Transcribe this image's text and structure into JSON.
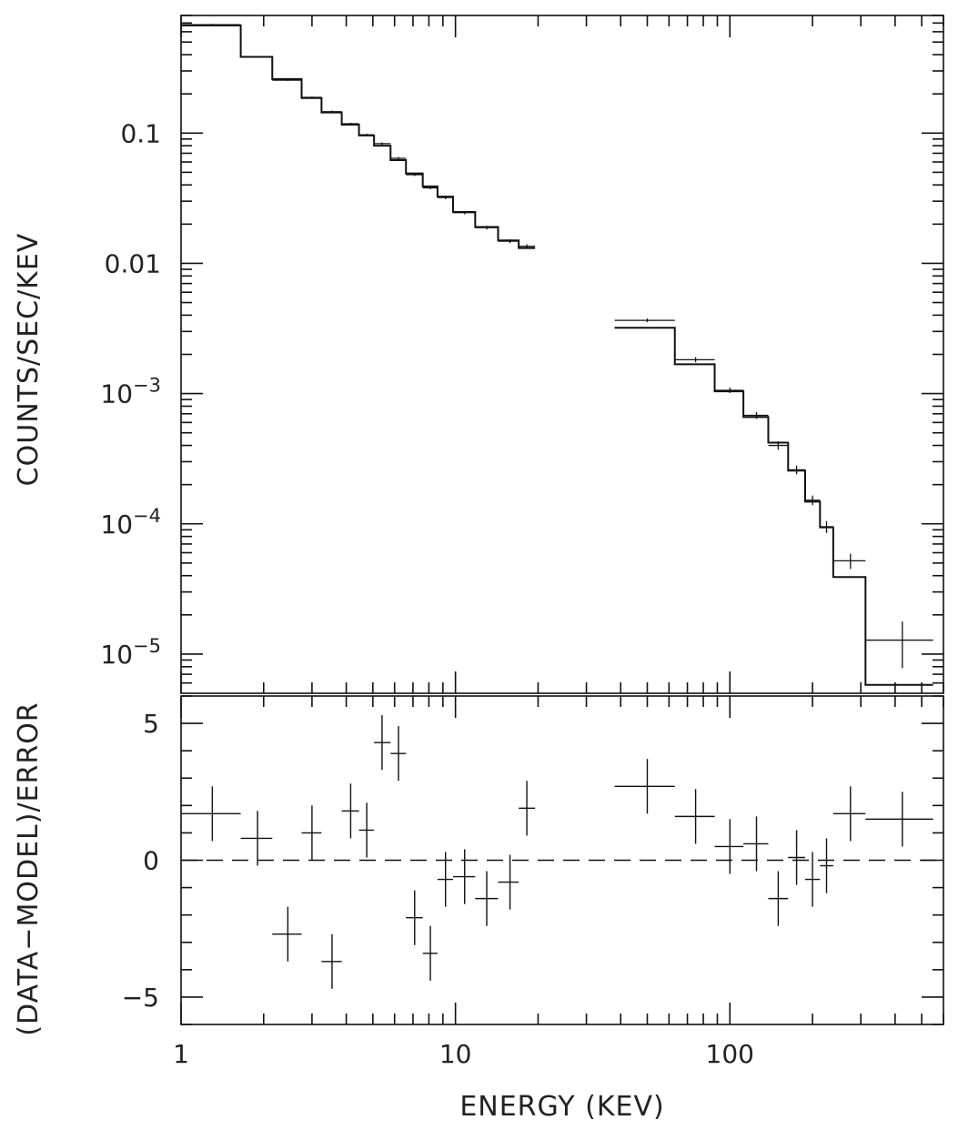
{
  "chart_data": [
    {
      "panel": "spectrum",
      "type": "step",
      "xscale": "log",
      "yscale": "log",
      "xlim": [
        1,
        600
      ],
      "ylim": [
        5e-06,
        0.8
      ],
      "xlabel": "",
      "ylabel": "COUNTS/SEC/KEV",
      "yticks": [
        {
          "value": 0.1,
          "label": "0.1",
          "exp": ""
        },
        {
          "value": 0.01,
          "label": "0.01",
          "exp": ""
        },
        {
          "value": 0.001,
          "label": "10",
          "exp": "−3"
        },
        {
          "value": 0.0001,
          "label": "10",
          "exp": "−4"
        },
        {
          "value": 1e-05,
          "label": "10",
          "exp": "−5"
        }
      ],
      "data_points": [
        {
          "x": 1.3,
          "xlo": 1.0,
          "xhi": 1.65,
          "y": 0.68,
          "yerr": 0.01
        },
        {
          "x": 1.9,
          "xlo": 1.65,
          "xhi": 2.15,
          "y": 0.385,
          "yerr": 0.006
        },
        {
          "x": 2.45,
          "xlo": 2.15,
          "xhi": 2.75,
          "y": 0.255,
          "yerr": 0.004
        },
        {
          "x": 3.0,
          "xlo": 2.75,
          "xhi": 3.25,
          "y": 0.188,
          "yerr": 0.003
        },
        {
          "x": 3.55,
          "xlo": 3.25,
          "xhi": 3.85,
          "y": 0.146,
          "yerr": 0.003
        },
        {
          "x": 4.15,
          "xlo": 3.85,
          "xhi": 4.45,
          "y": 0.118,
          "yerr": 0.002
        },
        {
          "x": 4.75,
          "xlo": 4.45,
          "xhi": 5.05,
          "y": 0.097,
          "yerr": 0.002
        },
        {
          "x": 5.4,
          "xlo": 5.05,
          "xhi": 5.8,
          "y": 0.083,
          "yerr": 0.0018
        },
        {
          "x": 6.2,
          "xlo": 5.8,
          "xhi": 6.6,
          "y": 0.064,
          "yerr": 0.0015
        },
        {
          "x": 7.1,
          "xlo": 6.6,
          "xhi": 7.6,
          "y": 0.048,
          "yerr": 0.0012
        },
        {
          "x": 8.1,
          "xlo": 7.6,
          "xhi": 8.6,
          "y": 0.038,
          "yerr": 0.001
        },
        {
          "x": 9.2,
          "xlo": 8.6,
          "xhi": 9.8,
          "y": 0.032,
          "yerr": 0.0009
        },
        {
          "x": 10.8,
          "xlo": 9.8,
          "xhi": 11.8,
          "y": 0.0245,
          "yerr": 0.0007
        },
        {
          "x": 13.0,
          "xlo": 11.8,
          "xhi": 14.3,
          "y": 0.0188,
          "yerr": 0.0006
        },
        {
          "x": 15.8,
          "xlo": 14.3,
          "xhi": 17.0,
          "y": 0.0148,
          "yerr": 0.0005
        },
        {
          "x": 18.2,
          "xlo": 17.0,
          "xhi": 19.5,
          "y": 0.0135,
          "yerr": 0.0005
        },
        {
          "x": 50,
          "xlo": 38,
          "xhi": 63,
          "y": 0.00365,
          "yerr": 0.00012
        },
        {
          "x": 75,
          "xlo": 63,
          "xhi": 88,
          "y": 0.00182,
          "yerr": 8e-05
        },
        {
          "x": 100,
          "xlo": 88,
          "xhi": 112,
          "y": 0.00106,
          "yerr": 5e-05
        },
        {
          "x": 125,
          "xlo": 112,
          "xhi": 138,
          "y": 0.00068,
          "yerr": 4e-05
        },
        {
          "x": 150,
          "xlo": 138,
          "xhi": 163,
          "y": 0.0004,
          "yerr": 3e-05
        },
        {
          "x": 175,
          "xlo": 163,
          "xhi": 188,
          "y": 0.00026,
          "yerr": 2e-05
        },
        {
          "x": 200,
          "xlo": 188,
          "xhi": 213,
          "y": 0.000152,
          "yerr": 1.3e-05
        },
        {
          "x": 225,
          "xlo": 213,
          "xhi": 238,
          "y": 9.5e-05,
          "yerr": 1e-05
        },
        {
          "x": 275,
          "xlo": 238,
          "xhi": 312,
          "y": 5.2e-05,
          "yerr": 7e-06
        },
        {
          "x": 425,
          "xlo": 312,
          "xhi": 550,
          "y": 1.28e-05,
          "yerr": 5e-06
        }
      ],
      "model_bins": [
        {
          "xlo": 1.0,
          "xhi": 1.65,
          "y": 0.67
        },
        {
          "xlo": 1.65,
          "xhi": 2.15,
          "y": 0.385
        },
        {
          "xlo": 2.15,
          "xhi": 2.75,
          "y": 0.26
        },
        {
          "xlo": 2.75,
          "xhi": 3.25,
          "y": 0.186
        },
        {
          "xlo": 3.25,
          "xhi": 3.85,
          "y": 0.144
        },
        {
          "xlo": 3.85,
          "xhi": 4.45,
          "y": 0.116
        },
        {
          "xlo": 4.45,
          "xhi": 5.05,
          "y": 0.096
        },
        {
          "xlo": 5.05,
          "xhi": 5.8,
          "y": 0.08
        },
        {
          "xlo": 5.8,
          "xhi": 6.6,
          "y": 0.062
        },
        {
          "xlo": 6.6,
          "xhi": 7.6,
          "y": 0.049
        },
        {
          "xlo": 7.6,
          "xhi": 8.6,
          "y": 0.039
        },
        {
          "xlo": 8.6,
          "xhi": 9.8,
          "y": 0.0325
        },
        {
          "xlo": 9.8,
          "xhi": 11.8,
          "y": 0.0248
        },
        {
          "xlo": 11.8,
          "xhi": 14.3,
          "y": 0.019
        },
        {
          "xlo": 14.3,
          "xhi": 17.0,
          "y": 0.015
        },
        {
          "xlo": 17.0,
          "xhi": 19.5,
          "y": 0.0131
        },
        {
          "xlo": 38,
          "xhi": 63,
          "y": 0.0032
        },
        {
          "xlo": 63,
          "xhi": 88,
          "y": 0.00168
        },
        {
          "xlo": 88,
          "xhi": 112,
          "y": 0.00104
        },
        {
          "xlo": 112,
          "xhi": 138,
          "y": 0.00066
        },
        {
          "xlo": 138,
          "xhi": 163,
          "y": 0.00042
        },
        {
          "xlo": 163,
          "xhi": 188,
          "y": 0.000256
        },
        {
          "xlo": 188,
          "xhi": 213,
          "y": 0.000148
        },
        {
          "xlo": 213,
          "xhi": 238,
          "y": 9.4e-05
        },
        {
          "xlo": 238,
          "xhi": 312,
          "y": 3.9e-05
        },
        {
          "xlo": 312,
          "xhi": 550,
          "y": 5.8e-06
        }
      ]
    },
    {
      "panel": "residuals",
      "type": "scatter-errorbar",
      "xscale": "log",
      "yscale": "linear",
      "xlim": [
        1,
        600
      ],
      "ylim": [
        -6,
        6
      ],
      "xlabel": "ENERGY (KEV)",
      "ylabel": "(DATA−MODEL)/ERROR",
      "reference_line": {
        "y": 0,
        "style": "dashed"
      },
      "xticks": [
        {
          "value": 1,
          "label": "1"
        },
        {
          "value": 10,
          "label": "10"
        },
        {
          "value": 100,
          "label": "100"
        }
      ],
      "yticks": [
        {
          "value": 5,
          "label": "5"
        },
        {
          "value": 0,
          "label": "0"
        },
        {
          "value": -5,
          "label": "−5"
        }
      ],
      "points": [
        {
          "x": 1.3,
          "xlo": 1.0,
          "xhi": 1.65,
          "y": 1.7,
          "yerr": 1.0
        },
        {
          "x": 1.9,
          "xlo": 1.65,
          "xhi": 2.15,
          "y": 0.8,
          "yerr": 1.0
        },
        {
          "x": 2.45,
          "xlo": 2.15,
          "xhi": 2.75,
          "y": -2.7,
          "yerr": 1.0
        },
        {
          "x": 3.0,
          "xlo": 2.75,
          "xhi": 3.25,
          "y": 1.0,
          "yerr": 1.0
        },
        {
          "x": 3.55,
          "xlo": 3.25,
          "xhi": 3.85,
          "y": -3.7,
          "yerr": 1.0
        },
        {
          "x": 4.15,
          "xlo": 3.85,
          "xhi": 4.45,
          "y": 1.8,
          "yerr": 1.0
        },
        {
          "x": 4.75,
          "xlo": 4.45,
          "xhi": 5.05,
          "y": 1.1,
          "yerr": 1.0
        },
        {
          "x": 5.4,
          "xlo": 5.05,
          "xhi": 5.8,
          "y": 4.3,
          "yerr": 1.0
        },
        {
          "x": 6.2,
          "xlo": 5.8,
          "xhi": 6.6,
          "y": 3.9,
          "yerr": 1.0
        },
        {
          "x": 7.1,
          "xlo": 6.6,
          "xhi": 7.6,
          "y": -2.1,
          "yerr": 1.0
        },
        {
          "x": 8.1,
          "xlo": 7.6,
          "xhi": 8.6,
          "y": -3.4,
          "yerr": 1.0
        },
        {
          "x": 9.2,
          "xlo": 8.6,
          "xhi": 9.8,
          "y": -0.7,
          "yerr": 1.0
        },
        {
          "x": 10.8,
          "xlo": 9.8,
          "xhi": 11.8,
          "y": -0.6,
          "yerr": 1.0
        },
        {
          "x": 13.0,
          "xlo": 11.8,
          "xhi": 14.3,
          "y": -1.4,
          "yerr": 1.0
        },
        {
          "x": 15.8,
          "xlo": 14.3,
          "xhi": 17.0,
          "y": -0.8,
          "yerr": 1.0
        },
        {
          "x": 18.2,
          "xlo": 17.0,
          "xhi": 19.5,
          "y": 1.9,
          "yerr": 1.0
        },
        {
          "x": 50,
          "xlo": 38,
          "xhi": 63,
          "y": 2.7,
          "yerr": 1.0
        },
        {
          "x": 75,
          "xlo": 63,
          "xhi": 88,
          "y": 1.6,
          "yerr": 1.0
        },
        {
          "x": 100,
          "xlo": 88,
          "xhi": 112,
          "y": 0.5,
          "yerr": 1.0
        },
        {
          "x": 125,
          "xlo": 112,
          "xhi": 138,
          "y": 0.6,
          "yerr": 1.0
        },
        {
          "x": 150,
          "xlo": 138,
          "xhi": 163,
          "y": -1.4,
          "yerr": 1.0
        },
        {
          "x": 175,
          "xlo": 163,
          "xhi": 188,
          "y": 0.1,
          "yerr": 1.0
        },
        {
          "x": 200,
          "xlo": 188,
          "xhi": 213,
          "y": -0.7,
          "yerr": 1.0
        },
        {
          "x": 225,
          "xlo": 213,
          "xhi": 238,
          "y": -0.2,
          "yerr": 1.0
        },
        {
          "x": 275,
          "xlo": 238,
          "xhi": 312,
          "y": 1.7,
          "yerr": 1.0
        },
        {
          "x": 425,
          "xlo": 312,
          "xhi": 550,
          "y": 1.5,
          "yerr": 1.0
        }
      ]
    }
  ]
}
